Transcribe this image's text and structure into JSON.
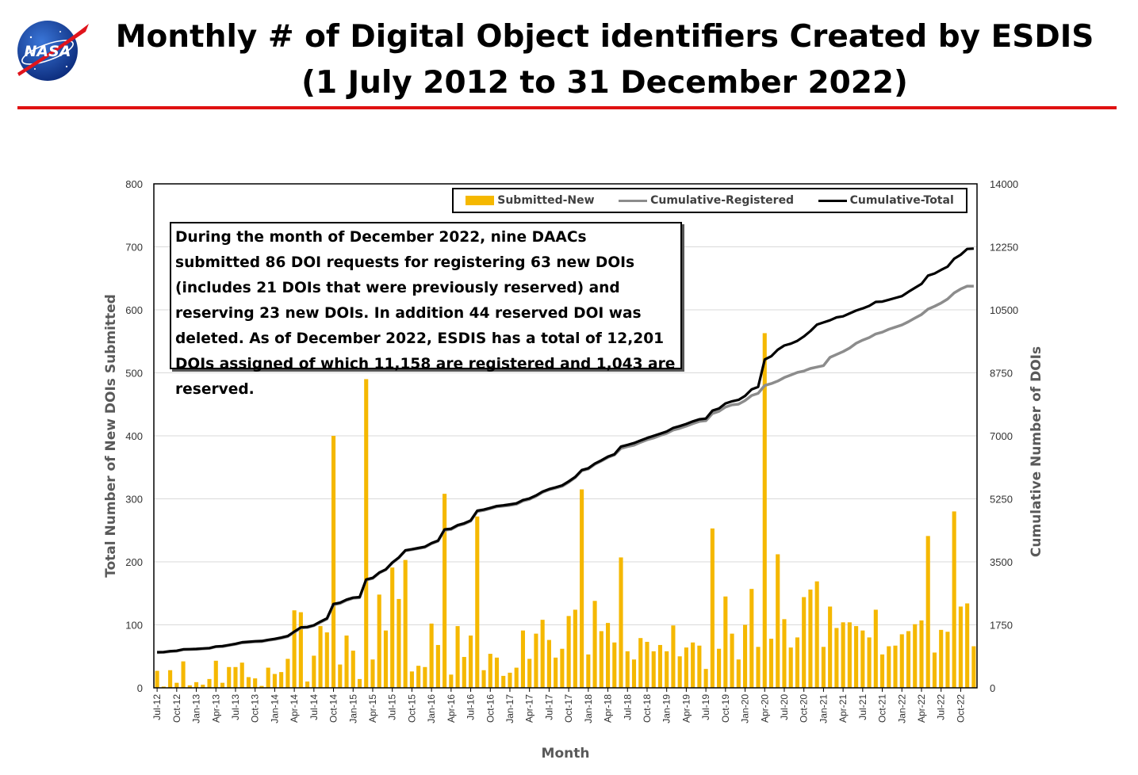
{
  "header": {
    "title_line1": "Monthly # of Digital Object identifiers Created by ESDIS",
    "title_line2": "(1 July 2012 to 31 December 2022)",
    "logo_text": "NASA"
  },
  "note_text": "During the month of December 2022, nine DAACs submitted 86 DOI requests for registering 63 new DOIs (includes 21 DOIs that were previously reserved) and reserving 23 new DOIs. In addition 44 reserved DOI was deleted. As of December 2022, ESDIS has a total of 12,201 DOIs assigned of which 11,158 are registered and 1,043 are reserved.",
  "colors": {
    "bar": "#f5b800",
    "registered": "#8c8c8c",
    "total": "#000000",
    "accent_line": "#e01111"
  },
  "chart_data": {
    "type": "bar",
    "xlabel": "Month",
    "ylabel_left": "Total Number of New DOIs Submitted",
    "ylabel_right": "Cumulative Number of DOIs",
    "ylim_left": [
      0,
      800
    ],
    "ylim_right": [
      0,
      14000
    ],
    "yticks_left": [
      "0",
      "100",
      "200",
      "300",
      "400",
      "500",
      "600",
      "700",
      "800"
    ],
    "yticks_right": [
      "0",
      "1750",
      "3500",
      "5250",
      "7000",
      "8750",
      "10500",
      "12250",
      "14000"
    ],
    "x_tick_labels": [
      "Jul-12",
      "Oct-12",
      "Jan-13",
      "Apr-13",
      "Jul-13",
      "Oct-13",
      "Jan-14",
      "Apr-14",
      "Jul-14",
      "Oct-14",
      "Jan-15",
      "Apr-15",
      "Jul-15",
      "Oct-15",
      "Jan-16",
      "Apr-16",
      "Jul-16",
      "Oct-16",
      "Jan-17",
      "Apr-17",
      "Jul-17",
      "Oct-17",
      "Jan-18",
      "Apr-18",
      "Jul-18",
      "Oct-18",
      "Jan-19",
      "Apr-19",
      "Jul-19",
      "Oct-19",
      "Jan-20",
      "Apr-20",
      "Jul-20",
      "Oct-20",
      "Jan-21",
      "Apr-21",
      "Jul-21",
      "Oct-21",
      "Jan-22",
      "Apr-22",
      "Jul-22",
      "Oct-22"
    ],
    "legend": [
      "Submitted-New",
      "Cumulative-Registered",
      "Cumulative-Total"
    ],
    "legend_placement": "top-right",
    "series": [
      {
        "name": "Submitted-New",
        "type": "bar",
        "axis": "left",
        "values": [
          27,
          2,
          28,
          8,
          42,
          4,
          9,
          5,
          14,
          43,
          8,
          33,
          33,
          40,
          17,
          15,
          3,
          32,
          22,
          25,
          46,
          123,
          120,
          10,
          51,
          98,
          88,
          400,
          37,
          83,
          59,
          14,
          490,
          45,
          148,
          91,
          191,
          141,
          203,
          26,
          35,
          33,
          102,
          68,
          308,
          21,
          98,
          49,
          83,
          272,
          28,
          54,
          48,
          19,
          24,
          32,
          91,
          46,
          86,
          108,
          76,
          48,
          62,
          114,
          124,
          315,
          53,
          138,
          90,
          103,
          72,
          207,
          58,
          45,
          79,
          73,
          58,
          68,
          58,
          99,
          50,
          64,
          72,
          67,
          30,
          253,
          62,
          145,
          86,
          45,
          100,
          157,
          65,
          563,
          78,
          212,
          109,
          64,
          80,
          144,
          156,
          169,
          65,
          129,
          95,
          104,
          104,
          98,
          91,
          80,
          124,
          53,
          66,
          67,
          85,
          90,
          101,
          107,
          241,
          56,
          92,
          89,
          280,
          129,
          134,
          66
        ]
      },
      {
        "name": "Cumulative-Registered",
        "type": "line",
        "axis": "right",
        "values": [
          980,
          985,
          1005,
          1020,
          1060,
          1065,
          1070,
          1085,
          1095,
          1140,
          1145,
          1180,
          1210,
          1250,
          1265,
          1280,
          1285,
          1320,
          1345,
          1380,
          1425,
          1545,
          1665,
          1675,
          1725,
          1820,
          1910,
          2310,
          2345,
          2430,
          2490,
          2505,
          2995,
          3040,
          3190,
          3280,
          3470,
          3610,
          3810,
          3840,
          3870,
          3905,
          4005,
          4075,
          4380,
          4400,
          4500,
          4550,
          4630,
          4900,
          4930,
          4980,
          5030,
          5050,
          5070,
          5100,
          5190,
          5240,
          5320,
          5430,
          5500,
          5550,
          5600,
          5710,
          5840,
          6030,
          6080,
          6210,
          6300,
          6400,
          6470,
          6650,
          6700,
          6740,
          6820,
          6890,
          6940,
          7010,
          7070,
          7160,
          7210,
          7270,
          7340,
          7400,
          7420,
          7620,
          7680,
          7800,
          7860,
          7880,
          7980,
          8120,
          8180,
          8400,
          8450,
          8520,
          8620,
          8690,
          8760,
          8800,
          8870,
          8910,
          8950,
          9180,
          9260,
          9340,
          9440,
          9570,
          9660,
          9730,
          9830,
          9880,
          9960,
          10020,
          10080,
          10170,
          10270,
          10370,
          10520,
          10600,
          10690,
          10800,
          10970,
          11080,
          11158,
          11158
        ]
      },
      {
        "name": "Cumulative-Total",
        "type": "line",
        "axis": "right",
        "values": [
          990,
          995,
          1020,
          1030,
          1070,
          1075,
          1080,
          1095,
          1105,
          1150,
          1160,
          1190,
          1225,
          1265,
          1280,
          1295,
          1300,
          1335,
          1360,
          1395,
          1440,
          1560,
          1680,
          1690,
          1740,
          1840,
          1930,
          2330,
          2365,
          2450,
          2505,
          2520,
          3010,
          3055,
          3200,
          3290,
          3480,
          3620,
          3820,
          3850,
          3885,
          3920,
          4020,
          4090,
          4400,
          4420,
          4520,
          4570,
          4650,
          4920,
          4950,
          5000,
          5050,
          5070,
          5095,
          5125,
          5215,
          5260,
          5345,
          5450,
          5520,
          5570,
          5625,
          5735,
          5860,
          6050,
          6100,
          6230,
          6320,
          6420,
          6490,
          6700,
          6750,
          6800,
          6870,
          6940,
          7000,
          7060,
          7120,
          7220,
          7270,
          7330,
          7400,
          7460,
          7480,
          7700,
          7760,
          7900,
          7960,
          8000,
          8110,
          8290,
          8360,
          9120,
          9210,
          9390,
          9510,
          9560,
          9640,
          9760,
          9910,
          10090,
          10150,
          10210,
          10290,
          10320,
          10400,
          10480,
          10540,
          10610,
          10720,
          10730,
          10780,
          10830,
          10880,
          11000,
          11110,
          11220,
          11450,
          11510,
          11610,
          11700,
          11920,
          12030,
          12190,
          12201
        ]
      }
    ],
    "grid": "horizontal"
  }
}
